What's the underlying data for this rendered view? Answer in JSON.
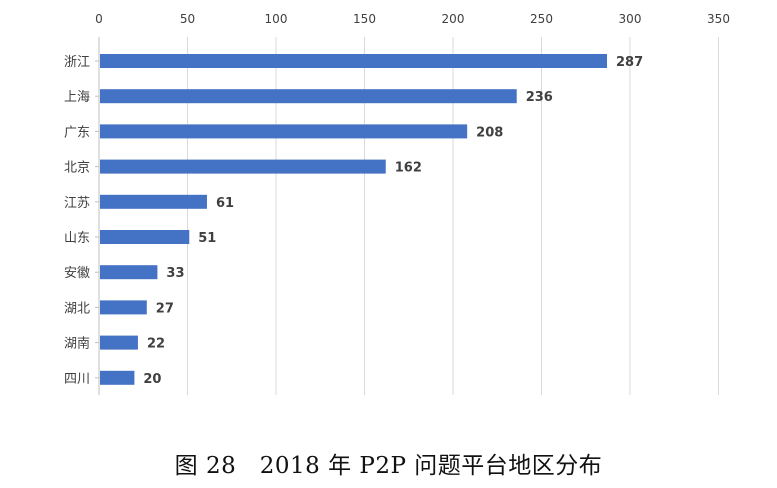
{
  "caption": "图 28　2018 年 P2P 问题平台地区分布",
  "chart_data": {
    "type": "bar",
    "orientation": "horizontal",
    "title": "",
    "xlabel": "",
    "ylabel": "",
    "categories": [
      "浙江",
      "上海",
      "广东",
      "北京",
      "江苏",
      "山东",
      "安徽",
      "湖北",
      "湖南",
      "四川"
    ],
    "values": [
      287,
      236,
      208,
      162,
      61,
      51,
      33,
      27,
      22,
      20
    ],
    "xlim": [
      0,
      350
    ],
    "x_ticks": [
      0,
      50,
      100,
      150,
      200,
      250,
      300,
      350
    ],
    "x_axis_position": "top",
    "grid": true,
    "data_labels": true,
    "legend": "none",
    "bar_color": "#4472C4",
    "grid_color": "#D9D9D9",
    "axis_color": "#BFBFBF",
    "text_color": "#404040"
  }
}
